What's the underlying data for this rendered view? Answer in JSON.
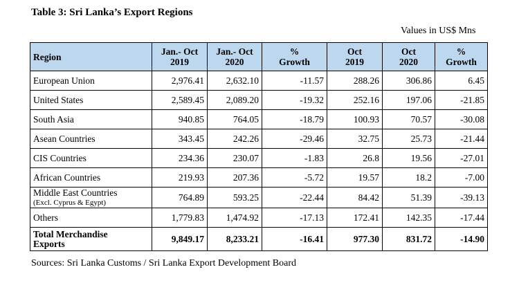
{
  "title": "Table 3: Sri Lanka’s Export Regions",
  "units": "Values in US$ Mns",
  "headers": {
    "region": "Region",
    "jan_oct_2019": [
      "Jan.- Oct",
      "2019"
    ],
    "jan_oct_2020": [
      "Jan.- Oct",
      "2020"
    ],
    "growth_ytd": [
      "%",
      "Growth"
    ],
    "oct_2019": [
      "Oct",
      "2019"
    ],
    "oct_2020": [
      "Oct",
      "2020"
    ],
    "growth_oct": [
      "%",
      "Growth"
    ]
  },
  "rows": [
    {
      "region": "European Union",
      "sub": "",
      "v": [
        "2,976.41",
        "2,632.10",
        "-11.57",
        "288.26",
        "306.86",
        "6.45"
      ]
    },
    {
      "region": "United States",
      "sub": "",
      "v": [
        "2,589.45",
        "2,089.20",
        "-19.32",
        "252.16",
        "197.06",
        "-21.85"
      ]
    },
    {
      "region": "South Asia",
      "sub": "",
      "v": [
        "940.85",
        "764.05",
        "-18.79",
        "100.93",
        "70.57",
        "-30.08"
      ]
    },
    {
      "region": "Asean Countries",
      "sub": "",
      "v": [
        "343.45",
        "242.26",
        "-29.46",
        "32.75",
        "25.73",
        "-21.44"
      ]
    },
    {
      "region": "CIS Countries",
      "sub": "",
      "v": [
        "234.36",
        "230.07",
        "-1.83",
        "26.8",
        "19.56",
        "-27.01"
      ]
    },
    {
      "region": "African Countries",
      "sub": "",
      "v": [
        "219.93",
        "207.36",
        "-5.72",
        "19.57",
        "18.2",
        "-7.00"
      ]
    },
    {
      "region": "Middle East Countries",
      "sub": "(Excl. Cyprus & Egypt)",
      "v": [
        "764.89",
        "593.25",
        "-22.44",
        "84.42",
        "51.39",
        "-39.13"
      ]
    },
    {
      "region": "Others",
      "sub": "",
      "v": [
        "1,779.83",
        "1,474.92",
        "-17.13",
        "172.41",
        "142.35",
        "-17.44"
      ]
    }
  ],
  "total": {
    "region": [
      "Total Merchandise",
      "Exports"
    ],
    "v": [
      "9,849.17",
      "8,233.21",
      "-16.41",
      "977.30",
      "831.72",
      "-14.90"
    ]
  },
  "source": "Sources:  Sri Lanka Customs / Sri Lanka Export Development Board",
  "colors": {
    "header_bg": "#BDD7EE",
    "border": "#000000",
    "text": "#000000"
  }
}
